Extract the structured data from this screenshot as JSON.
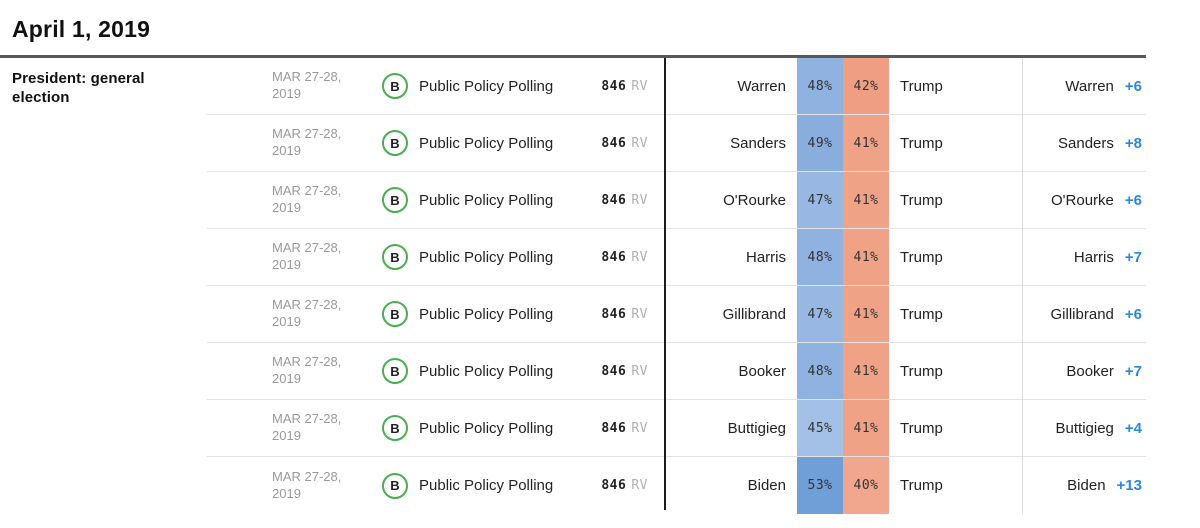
{
  "header": {
    "date_heading": "April 1, 2019"
  },
  "category": {
    "label": "President: general election"
  },
  "colors": {
    "margin_blue": "#2c87de",
    "grade_green": "#4aae50",
    "divider_dark": "#1c1c1c",
    "divider_light": "#dedede",
    "rule_dark": "#595959"
  },
  "rows": [
    {
      "date_line1": "MAR 27-28,",
      "date_line2": "2019",
      "grade": "B",
      "pollster": "Public Policy Polling",
      "sample_size": "846",
      "sample_type": "RV",
      "dem_candidate": "Warren",
      "dem_pct": "48%",
      "dem_color": "#8fb2e0",
      "rep_pct": "42%",
      "rep_color": "#ef9e83",
      "rep_candidate": "Trump",
      "leader": "Warren",
      "margin": "+6"
    },
    {
      "date_line1": "MAR 27-28,",
      "date_line2": "2019",
      "grade": "B",
      "pollster": "Public Policy Polling",
      "sample_size": "846",
      "sample_type": "RV",
      "dem_candidate": "Sanders",
      "dem_pct": "49%",
      "dem_color": "#89aede",
      "rep_pct": "41%",
      "rep_color": "#f0a287",
      "rep_candidate": "Trump",
      "leader": "Sanders",
      "margin": "+8"
    },
    {
      "date_line1": "MAR 27-28,",
      "date_line2": "2019",
      "grade": "B",
      "pollster": "Public Policy Polling",
      "sample_size": "846",
      "sample_type": "RV",
      "dem_candidate": "O'Rourke",
      "dem_pct": "47%",
      "dem_color": "#98b8e3",
      "rep_pct": "41%",
      "rep_color": "#f0a287",
      "rep_candidate": "Trump",
      "leader": "O'Rourke",
      "margin": "+6"
    },
    {
      "date_line1": "MAR 27-28,",
      "date_line2": "2019",
      "grade": "B",
      "pollster": "Public Policy Polling",
      "sample_size": "846",
      "sample_type": "RV",
      "dem_candidate": "Harris",
      "dem_pct": "48%",
      "dem_color": "#8fb2e0",
      "rep_pct": "41%",
      "rep_color": "#f0a287",
      "rep_candidate": "Trump",
      "leader": "Harris",
      "margin": "+7"
    },
    {
      "date_line1": "MAR 27-28,",
      "date_line2": "2019",
      "grade": "B",
      "pollster": "Public Policy Polling",
      "sample_size": "846",
      "sample_type": "RV",
      "dem_candidate": "Gillibrand",
      "dem_pct": "47%",
      "dem_color": "#98b8e3",
      "rep_pct": "41%",
      "rep_color": "#f0a287",
      "rep_candidate": "Trump",
      "leader": "Gillibrand",
      "margin": "+6"
    },
    {
      "date_line1": "MAR 27-28,",
      "date_line2": "2019",
      "grade": "B",
      "pollster": "Public Policy Polling",
      "sample_size": "846",
      "sample_type": "RV",
      "dem_candidate": "Booker",
      "dem_pct": "48%",
      "dem_color": "#8fb2e0",
      "rep_pct": "41%",
      "rep_color": "#f0a287",
      "rep_candidate": "Trump",
      "leader": "Booker",
      "margin": "+7"
    },
    {
      "date_line1": "MAR 27-28,",
      "date_line2": "2019",
      "grade": "B",
      "pollster": "Public Policy Polling",
      "sample_size": "846",
      "sample_type": "RV",
      "dem_candidate": "Buttigieg",
      "dem_pct": "45%",
      "dem_color": "#a3c0e6",
      "rep_pct": "41%",
      "rep_color": "#f0a287",
      "rep_candidate": "Trump",
      "leader": "Buttigieg",
      "margin": "+4"
    },
    {
      "date_line1": "MAR 27-28,",
      "date_line2": "2019",
      "grade": "B",
      "pollster": "Public Policy Polling",
      "sample_size": "846",
      "sample_type": "RV",
      "dem_candidate": "Biden",
      "dem_pct": "53%",
      "dem_color": "#6f9fd6",
      "rep_pct": "40%",
      "rep_color": "#f1a78d",
      "rep_candidate": "Trump",
      "leader": "Biden",
      "margin": "+13"
    }
  ]
}
